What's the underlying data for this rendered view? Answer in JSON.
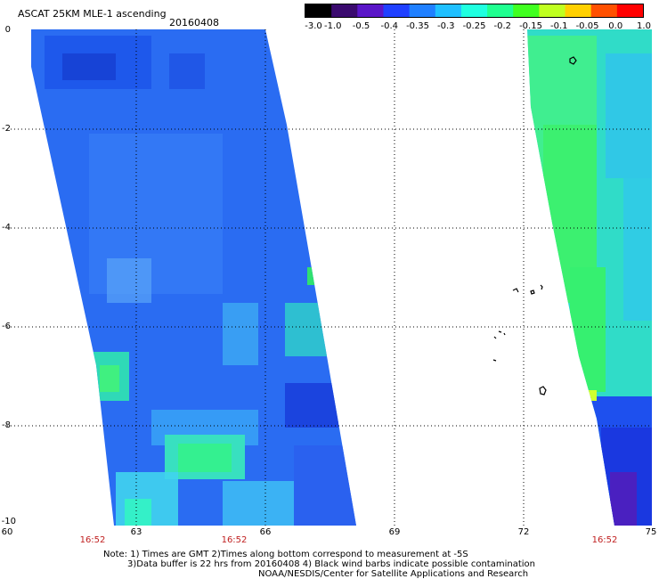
{
  "header": {
    "title": "ASCAT 25KM MLE-1 ascending",
    "date": "20160408"
  },
  "colorbar": {
    "labels": [
      "-3.0",
      "-1.0",
      "-0.5",
      "-0.4",
      "-0.35",
      "-0.3",
      "-0.25",
      "-0.2",
      "-0.15",
      "-0.1",
      "-0.05",
      "0.0",
      "1.0"
    ],
    "colors": [
      "#000000",
      "#3a0a6e",
      "#5a16c8",
      "#2040ff",
      "#2080ff",
      "#20c0ff",
      "#20ffe0",
      "#20ff90",
      "#40ff20",
      "#c0ff20",
      "#ffd000",
      "#ff5000",
      "#ff0000"
    ]
  },
  "map": {
    "x_axis": {
      "ticks": [
        "60",
        "63",
        "66",
        "69",
        "72",
        "75"
      ],
      "min": 60,
      "max": 75
    },
    "y_axis": {
      "ticks": [
        "0",
        "-2",
        "-4",
        "-6",
        "-8",
        "-10"
      ],
      "min": -10,
      "max": 0
    },
    "pass_times": [
      "16:52",
      "16:52",
      "16:52"
    ],
    "gridlines": true
  },
  "notes": {
    "line1": "Note: 1) Times are GMT 2)Times along bottom correspond to measurement at -5S",
    "line2": "3)Data buffer is 22 hrs from 20160408 4) Black wind barbs indicate possible contamination",
    "line3": "NOAA/NESDIS/Center for Satellite Applications and Research"
  }
}
